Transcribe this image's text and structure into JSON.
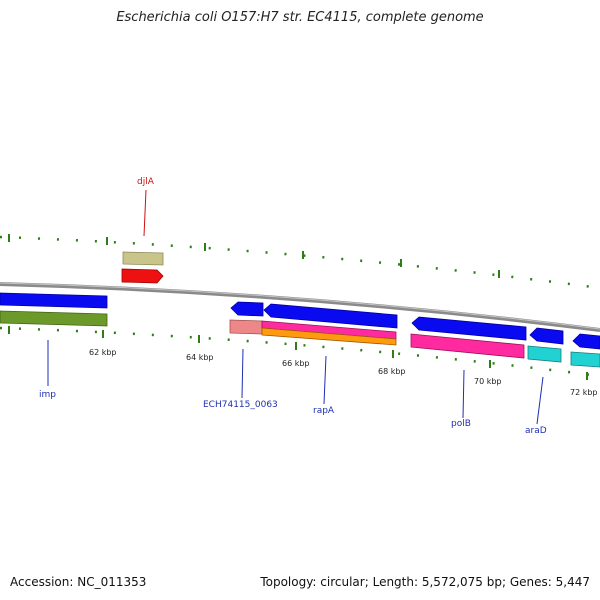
{
  "title": "Escherichia coli O157:H7 str. EC4115, complete genome",
  "accession_label": "Accession:",
  "accession": "NC_011353",
  "topology_label": "Topology:",
  "topology": "circular",
  "length_label": "Length:",
  "length": "5,572,075 bp",
  "genes_label": "Genes:",
  "genes": "5,447",
  "colors": {
    "backbone": "#8a8a8a",
    "tick": "#2f7d18",
    "label_blue": "#1f2fb3",
    "label_red": "#d01010"
  },
  "ticks": [
    {
      "label": "62 kbp"
    },
    {
      "label": "64 kbp"
    },
    {
      "label": "66 kbp"
    },
    {
      "label": "68 kbp"
    },
    {
      "label": "70 kbp"
    },
    {
      "label": "72 kbp"
    }
  ],
  "gene_labels": [
    {
      "name": "djlA",
      "color": "#d01010"
    },
    {
      "name": "imp",
      "color": "#1f2fb3"
    },
    {
      "name": "ECH74115_0063",
      "color": "#1f2fb3"
    },
    {
      "name": "rapA",
      "color": "#1f2fb3"
    },
    {
      "name": "polB",
      "color": "#1f2fb3"
    },
    {
      "name": "araD",
      "color": "#1f2fb3"
    }
  ]
}
